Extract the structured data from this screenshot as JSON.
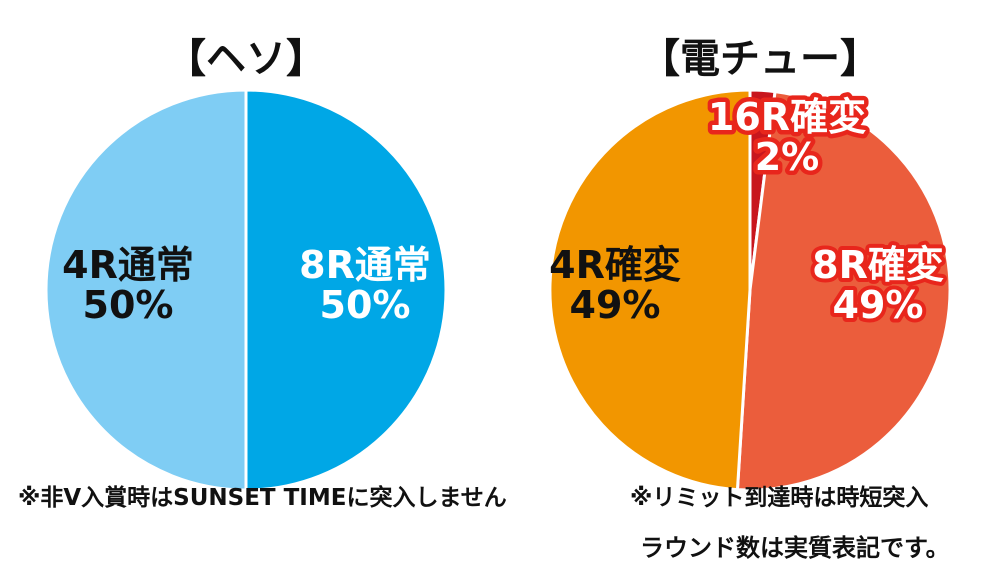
{
  "chart_data": [
    {
      "type": "pie",
      "title": "【ヘソ】",
      "slices": [
        {
          "label": "8R通常",
          "value": 50,
          "value_text": "50%",
          "color": "#00a7e6"
        },
        {
          "label": "4R通常",
          "value": 50,
          "value_text": "50%",
          "color": "#7fcdf4"
        }
      ],
      "note": "※非V入賞時はSUNSET TIMEに突入しません"
    },
    {
      "type": "pie",
      "title": "【電チュー】",
      "slices": [
        {
          "label": "16R確変",
          "value": 2,
          "value_text": "2%",
          "color": "#c8161d"
        },
        {
          "label": "8R確変",
          "value": 49,
          "value_text": "49%",
          "color": "#eb5d3c"
        },
        {
          "label": "4R確変",
          "value": 49,
          "value_text": "49%",
          "color": "#f29600"
        }
      ],
      "note": "※リミット到達時は時短突入"
    }
  ],
  "footer_note": "ラウンド数は実質表記です。"
}
